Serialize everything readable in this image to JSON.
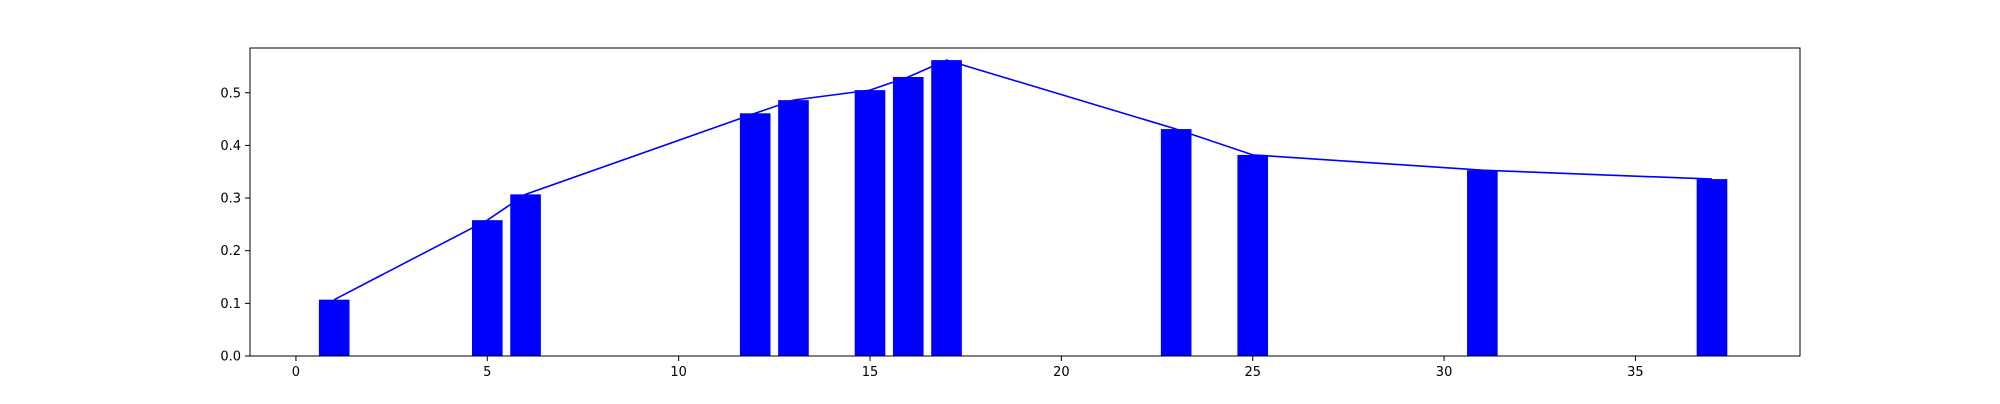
{
  "chart_data": {
    "type": "bar",
    "title": "",
    "xlabel": "",
    "ylabel": "",
    "xlim": [
      -1.2,
      39.3
    ],
    "ylim": [
      0,
      0.585
    ],
    "grid": false,
    "x_ticks": [
      0,
      5,
      10,
      15,
      20,
      25,
      30,
      35
    ],
    "y_ticks": [
      0.0,
      0.1,
      0.2,
      0.3,
      0.4,
      0.5
    ],
    "x_tick_labels": [
      "0",
      "5",
      "10",
      "15",
      "20",
      "25",
      "30",
      "35"
    ],
    "y_tick_labels": [
      "0.0",
      "0.1",
      "0.2",
      "0.3",
      "0.4",
      "0.5"
    ],
    "bar_color": "#0000ff",
    "line_color": "#0000ff",
    "bar_width": 0.8,
    "x": [
      1,
      5,
      6,
      12,
      13,
      15,
      16,
      17,
      23,
      25,
      31,
      37
    ],
    "values": [
      0.107,
      0.258,
      0.307,
      0.461,
      0.486,
      0.505,
      0.53,
      0.562,
      0.431,
      0.382,
      0.353,
      0.336
    ],
    "line": {
      "x": [
        1,
        5,
        6,
        12,
        13,
        15,
        16,
        17,
        23,
        25,
        31,
        37
      ],
      "values": [
        0.107,
        0.258,
        0.307,
        0.461,
        0.486,
        0.505,
        0.53,
        0.562,
        0.431,
        0.382,
        0.353,
        0.336
      ]
    }
  }
}
